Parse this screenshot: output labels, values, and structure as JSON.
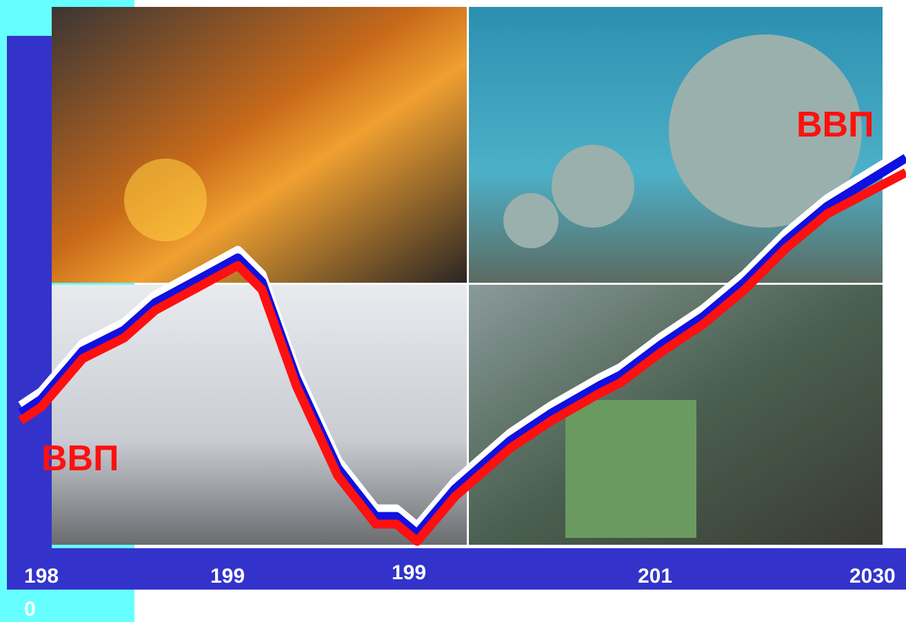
{
  "labels": {
    "gdp_left": "ВВП",
    "gdp_right": "ВВП"
  },
  "timeline": [
    "198",
    "199",
    "199",
    "201",
    "2030"
  ],
  "timeline_wrap": "0"
}
